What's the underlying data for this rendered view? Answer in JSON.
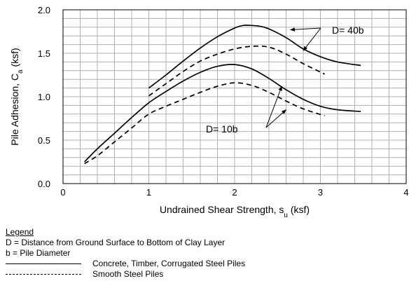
{
  "chart_data": {
    "type": "line",
    "title": "",
    "xlabel": "Undrained Shear Strength, s",
    "xlabel_sub": "u",
    "xlabel_unit": " (ksf)",
    "ylabel": "Pile Adhesion, C",
    "ylabel_sub": "a",
    "ylabel_unit": " (ksf)",
    "xlim": [
      0,
      4
    ],
    "ylim": [
      0,
      2.0
    ],
    "x_ticks": [
      "0",
      "1",
      "2",
      "3",
      "4"
    ],
    "y_ticks": [
      "0.0",
      "0.5",
      "1.0",
      "1.5",
      "2.0"
    ],
    "grid": true,
    "series": [
      {
        "style": "solid",
        "group": "D= 40b",
        "x": [
          1.0,
          1.2,
          1.4,
          1.6,
          1.8,
          2.0,
          2.1,
          2.2,
          2.3,
          2.4,
          2.6,
          2.8,
          3.0,
          3.2,
          3.47
        ],
        "y": [
          1.1,
          1.25,
          1.41,
          1.56,
          1.69,
          1.79,
          1.82,
          1.82,
          1.81,
          1.78,
          1.68,
          1.55,
          1.46,
          1.4,
          1.36
        ]
      },
      {
        "style": "dashed",
        "group": "D= 40b",
        "x": [
          1.0,
          1.2,
          1.4,
          1.6,
          1.8,
          2.0,
          2.2,
          2.4,
          2.6,
          2.8,
          3.05
        ],
        "y": [
          1.01,
          1.15,
          1.29,
          1.41,
          1.49,
          1.55,
          1.58,
          1.57,
          1.49,
          1.38,
          1.26
        ]
      },
      {
        "style": "solid",
        "group": "D= 10b",
        "x": [
          0.25,
          0.4,
          0.6,
          0.8,
          1.0,
          1.2,
          1.4,
          1.6,
          1.8,
          2.0,
          2.2,
          2.4,
          2.6,
          2.8,
          3.0,
          3.2,
          3.47
        ],
        "y": [
          0.25,
          0.4,
          0.58,
          0.76,
          0.93,
          1.06,
          1.18,
          1.28,
          1.35,
          1.37,
          1.32,
          1.21,
          1.08,
          0.97,
          0.89,
          0.85,
          0.83
        ]
      },
      {
        "style": "dashed",
        "group": "D= 10b",
        "x": [
          0.25,
          0.4,
          0.6,
          0.8,
          1.0,
          1.2,
          1.4,
          1.6,
          1.8,
          2.0,
          2.2,
          2.4,
          2.6,
          2.8,
          3.05
        ],
        "y": [
          0.23,
          0.32,
          0.48,
          0.64,
          0.8,
          0.89,
          0.97,
          1.05,
          1.12,
          1.16,
          1.13,
          1.05,
          0.95,
          0.86,
          0.78
        ]
      }
    ],
    "annotations": [
      {
        "text": "D= 40b",
        "targets": [
          [
            2.65,
            1.77
          ],
          [
            2.8,
            1.53
          ]
        ]
      },
      {
        "text": "D= 10b",
        "targets": [
          [
            2.55,
            1.12
          ],
          [
            2.6,
            0.85
          ]
        ]
      }
    ]
  },
  "legend": {
    "title": "Legend",
    "line1": "D = Distance from Ground Surface to Bottom of Clay Layer",
    "line2": "b = Pile Diameter",
    "solid_label": "Concrete, Timber, Corrugated Steel Piles",
    "dashed_label": "Smooth Steel Piles"
  }
}
